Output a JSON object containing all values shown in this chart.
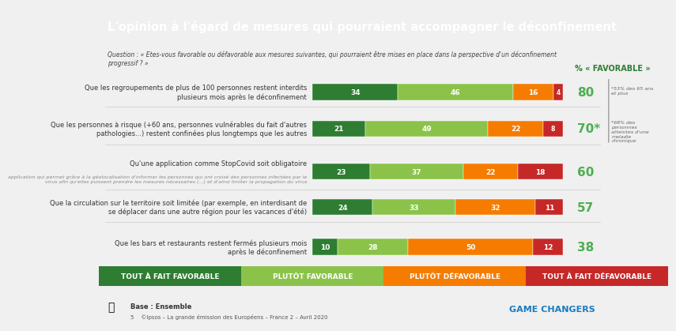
{
  "title": "L'opinion à l'égard de mesures qui pourraient accompagner le déconfinement",
  "subtitle": "Question : « Etes-vous favorable ou défavorable aux mesures suivantes, qui pourraient être mises en place dans la perspective d'un déconfinement\nprogressif ? »",
  "pct_label": "% « FAVORABLE »",
  "rows": [
    {
      "label": "Que les regroupements de plus de 100 personnes restent interdits\nplusieurs mois après le déconfinement",
      "values": [
        34,
        46,
        16,
        4
      ],
      "favorable": "80"
    },
    {
      "label": "Que les personnes à risque (+60 ans, personnes vulnérables du fait d'autres\npathologies...) restent confinées plus longtemps que les autres",
      "values": [
        21,
        49,
        22,
        8
      ],
      "favorable": "70*"
    },
    {
      "label": "Qu'une application comme StopCovid soit obligatoire\napplication qui permet grâce à la géolocalisation d'informer les personnes qui ont croisé des personnes infectées par le\nvirus afin qu'elles puissent prendre les mesures nécessaires (...) et d'ainsi limiter la propagation du virus",
      "label_main": "Qu'une application comme StopCovid soit obligatoire",
      "label_sub": "application qui permet grâce à la géolocalisation d'informer les personnes qui ont croisé des personnes infectées par le\nvirus afin qu'elles puissent prendre les mesures nécessaires (...) et d'ainsi limiter la propagation du virus",
      "values": [
        23,
        37,
        22,
        18
      ],
      "favorable": "60"
    },
    {
      "label": "Que la circulation sur le territoire soit limitée (par exemple, en interdisant de\nse déplacer dans une autre région pour les vacances d'été)",
      "values": [
        24,
        33,
        32,
        11
      ],
      "favorable": "57"
    },
    {
      "label": "Que les bars et restaurants restent fermés plusieurs mois\naprès le déconfinement",
      "values": [
        10,
        28,
        50,
        12
      ],
      "favorable": "38"
    }
  ],
  "colors": [
    "#2e7d32",
    "#8bc34a",
    "#f57c00",
    "#c62828"
  ],
  "favorable_color": "#4caf50",
  "legend_labels": [
    "Tout à fait favorable",
    "Plutôt favorable",
    "Plutôt défavorable",
    "Tout à fait défavorable"
  ],
  "legend_colors": [
    "#2e7d32",
    "#8bc34a",
    "#f57c00",
    "#c62828"
  ],
  "title_bg": "#1a3a5c",
  "title_color": "#ffffff",
  "bg_color": "#f0f0f0",
  "annotation1_top": "*53% des 65 ans\net plus",
  "annotation2_bottom": "*68% des\npersonnes\natteintes d'une\nmaladie\nchronique",
  "footer_left": "Base : Ensemble",
  "footer_sub": "5    ©Ipsos – La grande émission des Européens – France 2 – Avril 2020",
  "footer_right": "GAME CHANGERS"
}
